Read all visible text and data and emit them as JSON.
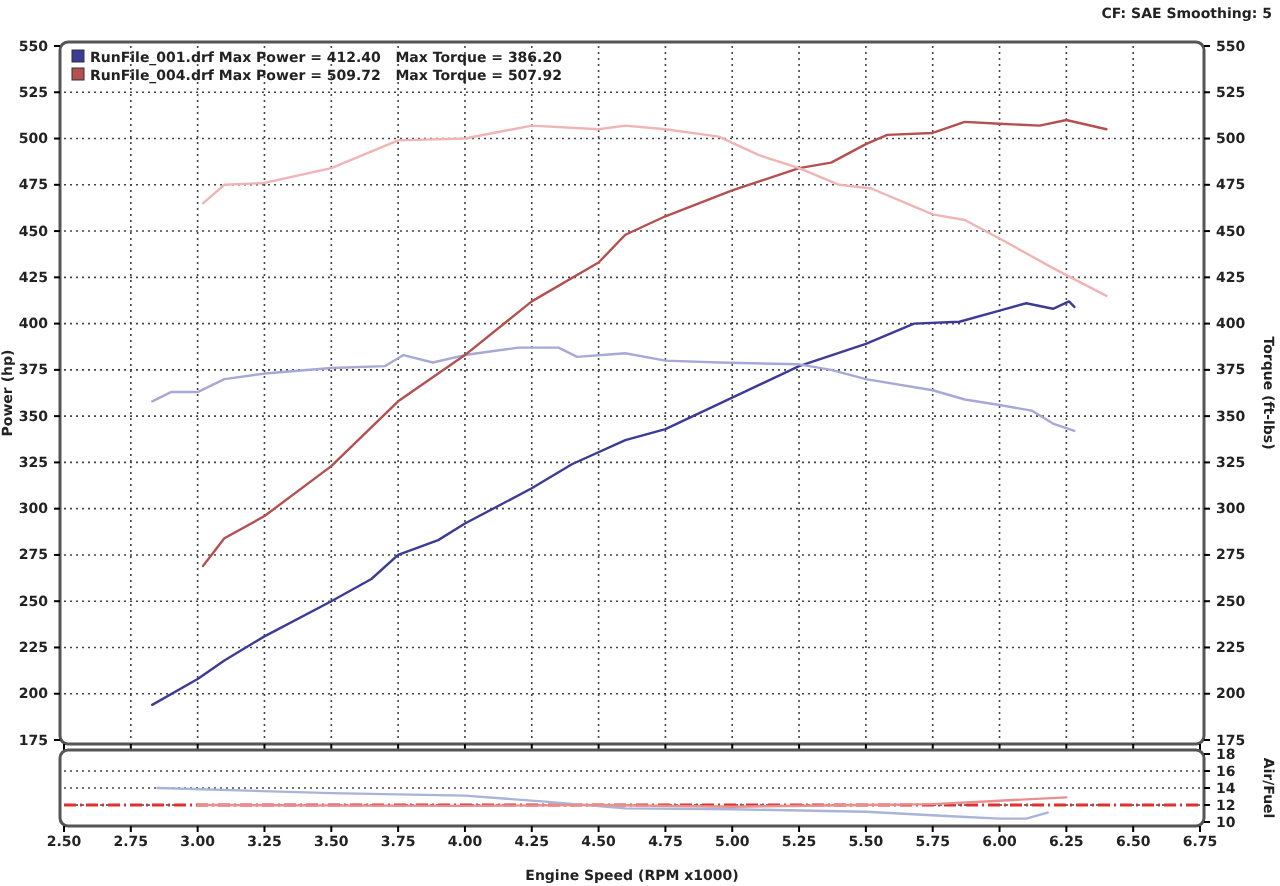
{
  "chart_data": [
    {
      "type": "line",
      "ylabel": "Power (hp)",
      "y2label": "Torque (ft-lbs)",
      "annotations": [
        "CF: SAE  Smoothing: 5"
      ],
      "xlim": [
        2.5,
        6.75
      ],
      "xticks": [
        {
          "value": 2.5,
          "label": null
        },
        {
          "value": 2.75,
          "label": null
        },
        {
          "value": 3,
          "label": null
        },
        {
          "value": 3.25,
          "label": null
        },
        {
          "value": 3.5,
          "label": null
        },
        {
          "value": 3.75,
          "label": null
        },
        {
          "value": 4,
          "label": null
        },
        {
          "value": 4.25,
          "label": null
        },
        {
          "value": 4.5,
          "label": null
        },
        {
          "value": 4.75,
          "label": null
        },
        {
          "value": 5,
          "label": null
        },
        {
          "value": 5.25,
          "label": null
        },
        {
          "value": 5.5,
          "label": null
        },
        {
          "value": 5.75,
          "label": null
        },
        {
          "value": 6,
          "label": null
        },
        {
          "value": 6.25,
          "label": null
        },
        {
          "value": 6.5,
          "label": null
        },
        {
          "value": 6.75,
          "label": null
        }
      ],
      "ylim": [
        175,
        550
      ],
      "yticks": [
        175,
        200,
        225,
        250,
        275,
        300,
        325,
        350,
        375,
        400,
        425,
        450,
        475,
        500,
        525,
        550
      ],
      "y2lim": [
        175,
        550
      ],
      "y2ticks": [
        175,
        200,
        225,
        250,
        275,
        300,
        325,
        350,
        375,
        400,
        425,
        450,
        475,
        500,
        525,
        550
      ],
      "tick_labels": "y",
      "grid": true,
      "legend": "top left",
      "line_style": "solid",
      "marker": "none",
      "series": [
        {
          "name": "RunFile_001.drf Max Power = 412.40   Max Torque = 386.20",
          "color": "#3c3c96",
          "x": [
            2.83,
            3.0,
            3.1,
            3.25,
            3.5,
            3.65,
            3.75,
            3.9,
            4.0,
            4.25,
            4.4,
            4.6,
            4.75,
            5.0,
            5.25,
            5.5,
            5.68,
            5.85,
            6.0,
            6.1,
            6.2,
            6.26,
            6.28
          ],
          "values": [
            194,
            208,
            218,
            231,
            250,
            262,
            275,
            283,
            292,
            311,
            324,
            337,
            343,
            360,
            377,
            389,
            400,
            401,
            407,
            411,
            408,
            412,
            409
          ]
        },
        {
          "color": "#a8a8d8",
          "x": [
            2.83,
            2.9,
            3.0,
            3.1,
            3.25,
            3.5,
            3.7,
            3.77,
            3.88,
            4.0,
            4.2,
            4.35,
            4.42,
            4.6,
            4.75,
            4.95,
            5.25,
            5.37,
            5.5,
            5.75,
            5.87,
            6.0,
            6.12,
            6.2,
            6.28
          ],
          "values": [
            358,
            363,
            363,
            370,
            373,
            376,
            377,
            383,
            379,
            383,
            387,
            387,
            382,
            384,
            380,
            379,
            378,
            375,
            370,
            364,
            359,
            356,
            353,
            346,
            342
          ]
        },
        {
          "name": "RunFile_004.drf Max Power = 509.72   Max Torque = 507.92",
          "color": "#b45050",
          "x": [
            3.02,
            3.1,
            3.25,
            3.5,
            3.75,
            4.0,
            4.25,
            4.5,
            4.6,
            4.75,
            5.0,
            5.25,
            5.37,
            5.5,
            5.58,
            5.75,
            5.87,
            6.0,
            6.15,
            6.25,
            6.4
          ],
          "values": [
            269,
            284,
            296,
            323,
            358,
            383,
            412,
            433,
            448,
            458,
            472,
            484,
            487,
            497,
            502,
            503,
            509,
            508,
            507,
            510,
            505
          ]
        },
        {
          "color": "#f0b4b4",
          "x": [
            3.02,
            3.1,
            3.25,
            3.5,
            3.75,
            4.0,
            4.25,
            4.5,
            4.6,
            4.75,
            4.95,
            5.1,
            5.25,
            5.4,
            5.52,
            5.75,
            5.87,
            6.0,
            6.2,
            6.4
          ],
          "values": [
            465,
            475,
            476,
            484,
            499,
            500,
            507,
            505,
            507,
            505,
            501,
            491,
            484,
            475,
            473,
            459,
            456,
            446,
            430,
            415
          ]
        }
      ]
    },
    {
      "type": "line",
      "xlabel": "Engine Speed (RPM x1000)",
      "y2label": "Air/Fuel",
      "xlim": [
        2.5,
        6.75
      ],
      "xticks": [
        {
          "value": 2.5,
          "label": "2.50"
        },
        {
          "value": 2.75,
          "label": "2.75"
        },
        {
          "value": 3,
          "label": "3.00"
        },
        {
          "value": 3.25,
          "label": "3.25"
        },
        {
          "value": 3.5,
          "label": "3.50"
        },
        {
          "value": 3.75,
          "label": "3.75"
        },
        {
          "value": 4,
          "label": "4.00"
        },
        {
          "value": 4.25,
          "label": "4.25"
        },
        {
          "value": 4.5,
          "label": "4.50"
        },
        {
          "value": 4.75,
          "label": "4.75"
        },
        {
          "value": 5,
          "label": "5.00"
        },
        {
          "value": 5.25,
          "label": "5.25"
        },
        {
          "value": 5.5,
          "label": "5.50"
        },
        {
          "value": 5.75,
          "label": "5.75"
        },
        {
          "value": 6,
          "label": "6.00"
        },
        {
          "value": 6.25,
          "label": "6.25"
        },
        {
          "value": 6.5,
          "label": "6.50"
        },
        {
          "value": 6.75,
          "label": "6.75"
        }
      ],
      "y2lim": [
        10,
        18
      ],
      "y2ticks": [
        10,
        12,
        14,
        16,
        18
      ],
      "grid": "y",
      "line_style": "solid",
      "marker": "none",
      "ref_lines": [
        {
          "axis": "y2",
          "value": 12,
          "color": "#e03030",
          "line_style": "dashed"
        }
      ],
      "series": [
        {
          "color": "#a8b4d8",
          "axis": "y2",
          "x": [
            2.85,
            3.5,
            4.0,
            4.3,
            4.6,
            5.0,
            5.5,
            5.8,
            6.0,
            6.1,
            6.18
          ],
          "values": [
            14.0,
            13.4,
            13.1,
            12.4,
            11.6,
            11.5,
            11.2,
            10.7,
            10.4,
            10.4,
            11.1
          ]
        },
        {
          "color": "#e89090",
          "axis": "y2",
          "x": [
            3.0,
            4.0,
            4.5,
            5.0,
            5.5,
            5.75,
            6.0,
            6.25
          ],
          "values": [
            12.0,
            11.9,
            12.0,
            11.8,
            12.0,
            12.1,
            12.5,
            12.9
          ]
        }
      ]
    }
  ]
}
